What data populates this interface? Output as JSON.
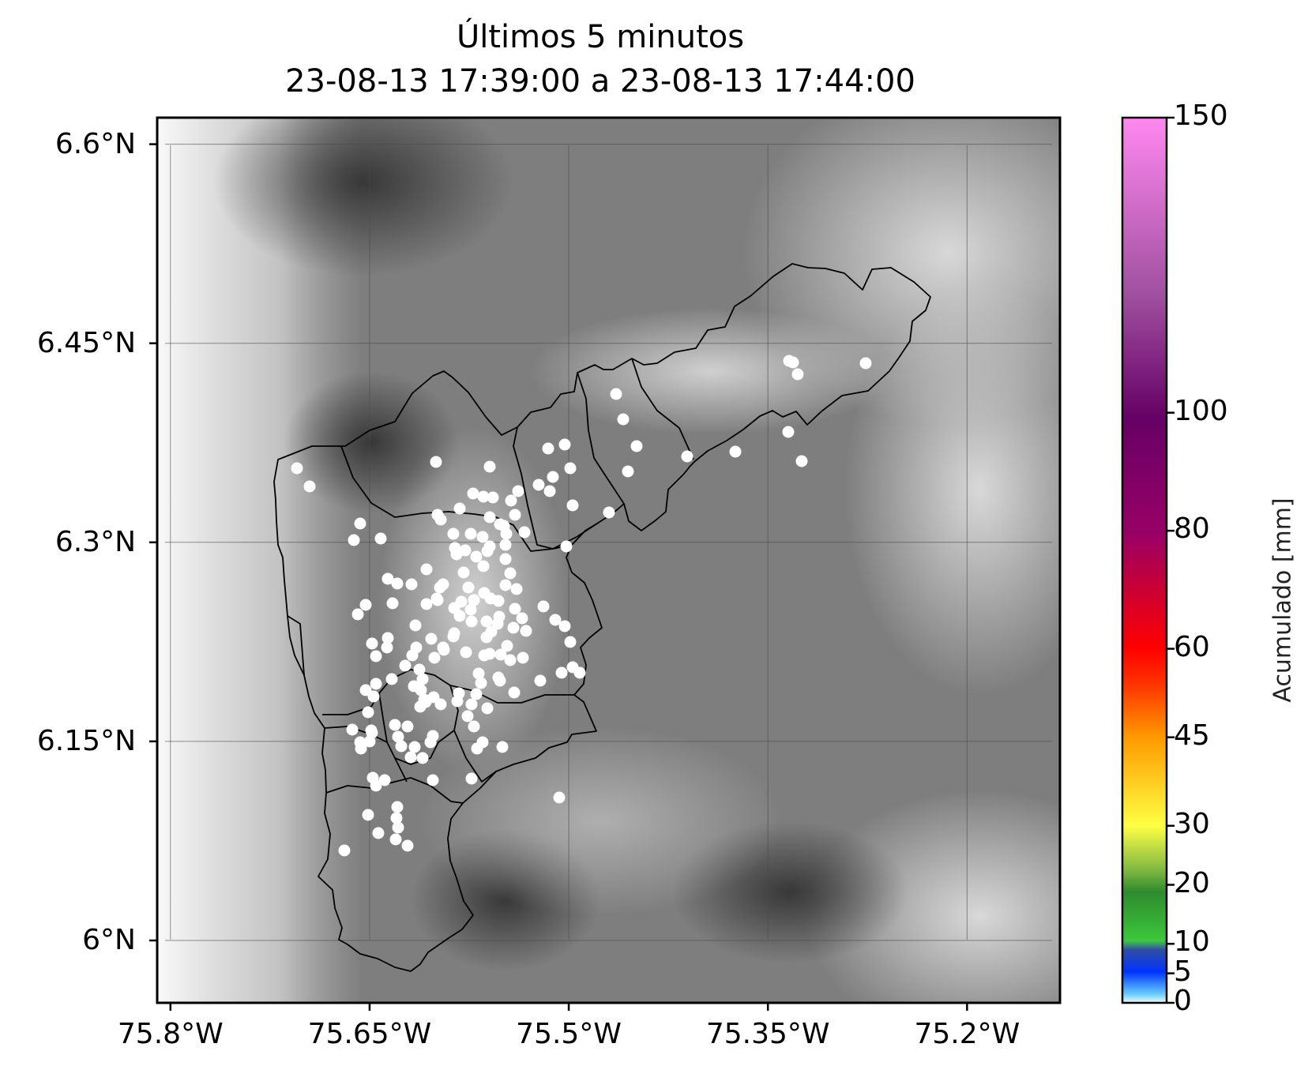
{
  "title": {
    "line1": "Últimos 5 minutos",
    "line2": "23-08-13 17:39:00 a 23-08-13 17:44:00"
  },
  "map": {
    "lon_range": [
      -75.81,
      -75.13
    ],
    "lat_range": [
      5.953,
      6.62
    ],
    "lon_ticks": [
      {
        "value": -75.8,
        "label": "75.8°W"
      },
      {
        "value": -75.65,
        "label": "75.65°W"
      },
      {
        "value": -75.5,
        "label": "75.5°W"
      },
      {
        "value": -75.35,
        "label": "75.35°W"
      },
      {
        "value": -75.2,
        "label": "75.2°W"
      }
    ],
    "lat_ticks": [
      {
        "value": 6.6,
        "label": "6.6°N"
      },
      {
        "value": 6.45,
        "label": "6.45°N"
      },
      {
        "value": 6.3,
        "label": "6.3°N"
      },
      {
        "value": 6.15,
        "label": "6.15°N"
      },
      {
        "value": 6.0,
        "label": "6°N"
      }
    ],
    "gridlines": true,
    "background": "grayscale elevation (terrain relief)",
    "station_color": "#ffffff",
    "boundary_color": "#000000"
  },
  "colorbar": {
    "title": "Acumulado [mm]",
    "ticks": [
      {
        "value": 150,
        "label": "150"
      },
      {
        "value": 100,
        "label": "100"
      },
      {
        "value": 80,
        "label": "80"
      },
      {
        "value": 60,
        "label": "60"
      },
      {
        "value": 45,
        "label": "45"
      },
      {
        "value": 30,
        "label": "30"
      },
      {
        "value": 20,
        "label": "20"
      },
      {
        "value": 10,
        "label": "10"
      },
      {
        "value": 5,
        "label": "5"
      },
      {
        "value": 0,
        "label": "0"
      }
    ],
    "colors": {
      "0": "#e0ffff",
      "5": "#0044ff",
      "10": "#2ea02e",
      "20": "#2e8b2e",
      "30": "#ffff40",
      "45": "#ff9900",
      "60": "#ff0000",
      "80": "#990066",
      "100": "#660066",
      "150": "#ff88f0"
    }
  }
}
